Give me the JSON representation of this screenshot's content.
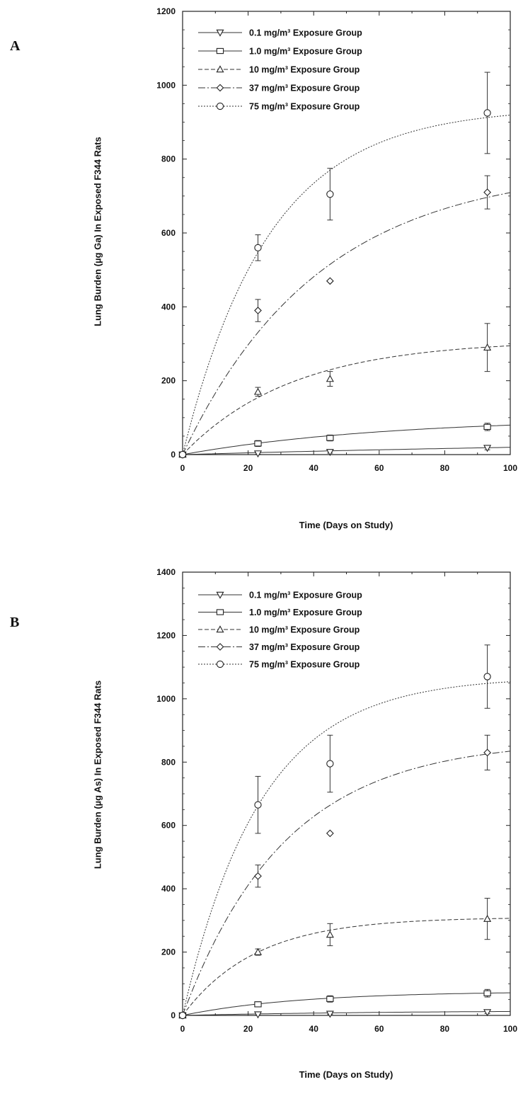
{
  "chart_data": [
    {
      "panel": "A",
      "type": "line",
      "xlabel": "Time (Days on Study)",
      "ylabel": "Lung Burden (µg Ga) In Exposed F344 Rats",
      "xlim": [
        0,
        100
      ],
      "ylim": [
        0,
        1200
      ],
      "xticks": [
        0,
        20,
        40,
        60,
        80,
        100
      ],
      "yticks": [
        0,
        200,
        400,
        600,
        800,
        1000,
        1200
      ],
      "legend_position": "top-left",
      "grid": false,
      "series": [
        {
          "name": "0.1 mg/m³ Exposure Group",
          "marker": "triangle-down",
          "x": [
            0,
            23,
            45,
            93
          ],
          "y": [
            0,
            3,
            7,
            18
          ],
          "err": [
            0,
            2,
            3,
            5
          ],
          "fit": {
            "plateau": 50,
            "k": 0.005
          }
        },
        {
          "name": "1.0 mg/m³ Exposure Group",
          "marker": "square",
          "x": [
            0,
            23,
            45,
            93
          ],
          "y": [
            0,
            30,
            45,
            75
          ],
          "err": [
            0,
            8,
            8,
            10
          ],
          "fit": {
            "plateau": 100,
            "k": 0.016
          }
        },
        {
          "name": "10 mg/m³ Exposure Group",
          "marker": "triangle-up",
          "x": [
            0,
            23,
            45,
            93
          ],
          "y": [
            0,
            170,
            205,
            290
          ],
          "err": [
            0,
            12,
            20,
            65
          ],
          "fit": {
            "plateau": 310,
            "k": 0.03
          }
        },
        {
          "name": "37 mg/m³ Exposure Group",
          "marker": "diamond",
          "x": [
            0,
            23,
            45,
            93
          ],
          "y": [
            0,
            390,
            470,
            710
          ],
          "err": [
            0,
            30,
            0,
            45
          ],
          "fit": {
            "plateau": 780,
            "k": 0.024
          }
        },
        {
          "name": "75 mg/m³ Exposure Group",
          "marker": "circle",
          "x": [
            0,
            23,
            45,
            93
          ],
          "y": [
            0,
            560,
            705,
            925
          ],
          "err": [
            0,
            35,
            70,
            110
          ],
          "fit": {
            "plateau": 940,
            "k": 0.038
          }
        }
      ]
    },
    {
      "panel": "B",
      "type": "line",
      "xlabel": "Time (Days on Study)",
      "ylabel": "Lung Burden (µg As) In Exposed F344 Rats",
      "xlim": [
        0,
        100
      ],
      "ylim": [
        0,
        1400
      ],
      "xticks": [
        0,
        20,
        40,
        60,
        80,
        100
      ],
      "yticks": [
        0,
        200,
        400,
        600,
        800,
        1000,
        1200,
        1400
      ],
      "legend_position": "top-left",
      "grid": false,
      "series": [
        {
          "name": "0.1 mg/m³ Exposure Group",
          "marker": "triangle-down",
          "x": [
            0,
            23,
            45,
            93
          ],
          "y": [
            0,
            3,
            5,
            10
          ],
          "err": [
            0,
            2,
            2,
            4
          ],
          "fit": {
            "plateau": 16,
            "k": 0.015
          }
        },
        {
          "name": "1.0 mg/m³ Exposure Group",
          "marker": "square",
          "x": [
            0,
            23,
            45,
            93
          ],
          "y": [
            0,
            35,
            52,
            70
          ],
          "err": [
            0,
            8,
            10,
            12
          ],
          "fit": {
            "plateau": 76,
            "k": 0.028
          }
        },
        {
          "name": "10 mg/m³ Exposure Group",
          "marker": "triangle-up",
          "x": [
            0,
            23,
            45,
            93
          ],
          "y": [
            0,
            200,
            255,
            305
          ],
          "err": [
            0,
            10,
            35,
            65
          ],
          "fit": {
            "plateau": 310,
            "k": 0.045
          }
        },
        {
          "name": "37 mg/m³ Exposure Group",
          "marker": "diamond",
          "x": [
            0,
            23,
            45,
            93
          ],
          "y": [
            0,
            440,
            575,
            830
          ],
          "err": [
            0,
            35,
            0,
            55
          ],
          "fit": {
            "plateau": 870,
            "k": 0.032
          }
        },
        {
          "name": "75 mg/m³ Exposure Group",
          "marker": "circle",
          "x": [
            0,
            23,
            45,
            93
          ],
          "y": [
            0,
            665,
            795,
            1070
          ],
          "err": [
            0,
            90,
            90,
            100
          ],
          "fit": {
            "plateau": 1070,
            "k": 0.042
          }
        }
      ]
    }
  ],
  "panels": {
    "a": {
      "letter": "A",
      "ylabel": "Lung Burden (µg Ga) In Exposed F344 Rats",
      "xlabel": "Time (Days on Study)"
    },
    "b": {
      "letter": "B",
      "ylabel": "Lung Burden (µg As) In Exposed F344 Rats",
      "xlabel": "Time (Days on Study)"
    }
  }
}
